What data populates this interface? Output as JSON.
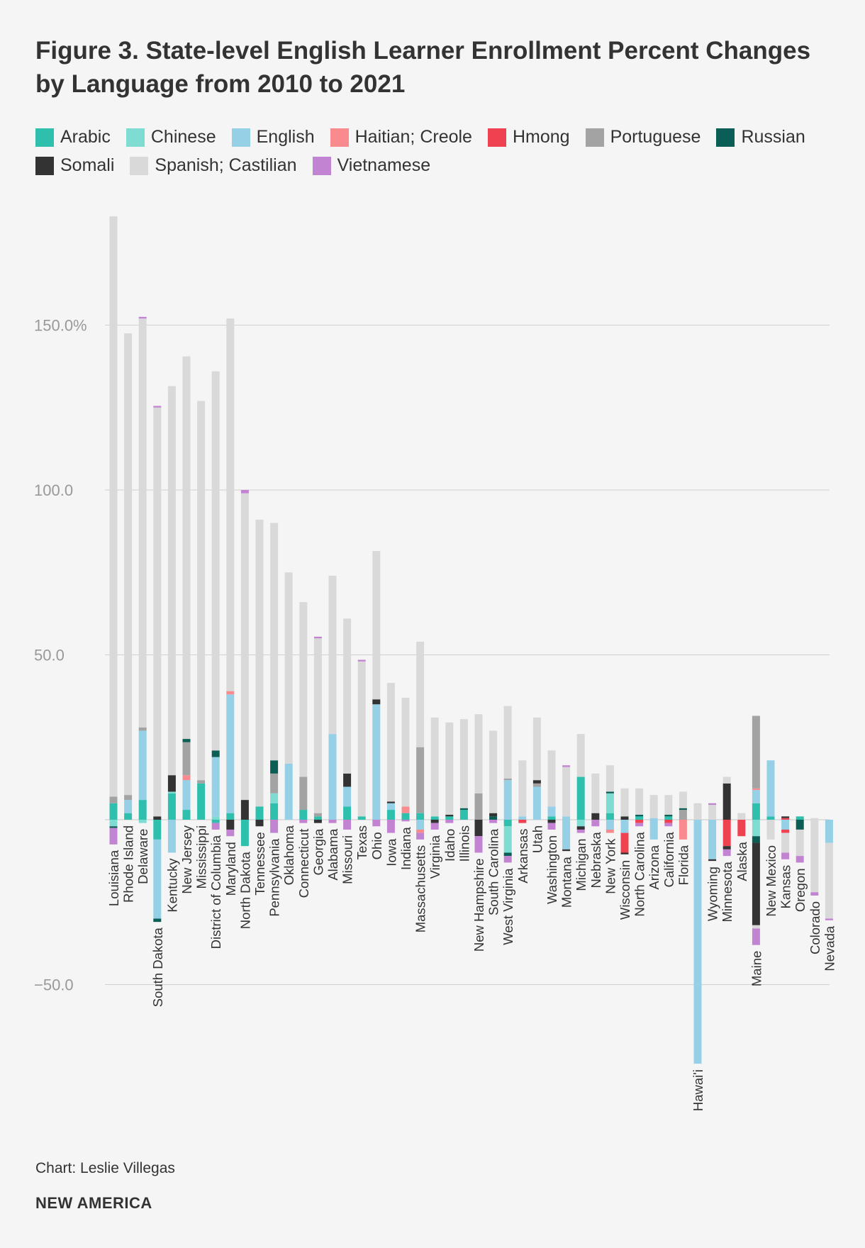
{
  "title": "Figure 3. State-level English Learner Enrollment Percent Changes by Language from 2010 to 2021",
  "credit": "Chart: Leslie Villegas",
  "brand": "NEW AMERICA",
  "chart_data": {
    "type": "bar",
    "stacked": true,
    "title": "Figure 3. State-level English Learner Enrollment Percent Changes by Language from 2010 to 2021",
    "xlabel": "",
    "ylabel": "",
    "ylim": [
      -75,
      185
    ],
    "yticks": [
      {
        "value": 150,
        "label": "150.0%"
      },
      {
        "value": 100,
        "label": "100.0"
      },
      {
        "value": 50,
        "label": "50.0"
      },
      {
        "value": -50,
        "label": "−50.0"
      }
    ],
    "legend_position": "top",
    "languages": [
      "Arabic",
      "Chinese",
      "English",
      "Haitian; Creole",
      "Hmong",
      "Portuguese",
      "Russian",
      "Somali",
      "Spanish; Castilian",
      "Vietnamese"
    ],
    "colors": {
      "Arabic": "#2ebfad",
      "Chinese": "#7fdcd2",
      "English": "#95d0e6",
      "Haitian; Creole": "#f98b8f",
      "Hmong": "#ef4250",
      "Portuguese": "#a3a3a3",
      "Russian": "#0b5e55",
      "Somali": "#333333",
      "Spanish; Castilian": "#d9d9d9",
      "Vietnamese": "#c283d2"
    },
    "states": [
      {
        "name": "Louisiana",
        "pos": {
          "Arabic": 5,
          "Portuguese": 2,
          "Spanish; Castilian": 176
        },
        "neg": {
          "Chinese": -2,
          "Russian": -0.5,
          "Vietnamese": -5
        }
      },
      {
        "name": "Rhode Island",
        "pos": {
          "Arabic": 2,
          "English": 4,
          "Portuguese": 1.5,
          "Spanish; Castilian": 140
        },
        "neg": {}
      },
      {
        "name": "Delaware",
        "pos": {
          "Arabic": 6,
          "English": 21,
          "Portuguese": 1,
          "Spanish; Castilian": 124,
          "Vietnamese": 0.5
        },
        "neg": {
          "Chinese": -1
        }
      },
      {
        "name": "South Dakota",
        "pos": {
          "Somali": 1,
          "Spanish; Castilian": 124,
          "Vietnamese": 0.5
        },
        "neg": {
          "Arabic": -6,
          "English": -24,
          "Russian": -1
        }
      },
      {
        "name": "Kentucky",
        "pos": {
          "Arabic": 8,
          "Chinese": 0.5,
          "Somali": 5,
          "Spanish; Castilian": 118
        },
        "neg": {
          "English": -10
        }
      },
      {
        "name": "New Jersey",
        "pos": {
          "Arabic": 3,
          "English": 9,
          "Haitian; Creole": 1.5,
          "Portuguese": 10,
          "Russian": 1,
          "Spanish; Castilian": 116
        },
        "neg": {}
      },
      {
        "name": "Mississippi",
        "pos": {
          "Arabic": 11,
          "Portuguese": 1,
          "Spanish; Castilian": 115
        },
        "neg": {}
      },
      {
        "name": "District of Columbia",
        "pos": {
          "Chinese": 1,
          "English": 18,
          "Russian": 2,
          "Spanish; Castilian": 115
        },
        "neg": {
          "Arabic": -1,
          "Vietnamese": -2
        }
      },
      {
        "name": "Maryland",
        "pos": {
          "Arabic": 2,
          "English": 36,
          "Haitian; Creole": 1,
          "Spanish; Castilian": 113
        },
        "neg": {
          "Somali": -3,
          "Vietnamese": -2
        }
      },
      {
        "name": "North Dakota",
        "pos": {
          "Somali": 6,
          "Spanish; Castilian": 93,
          "Vietnamese": 1
        },
        "neg": {
          "Arabic": -8
        }
      },
      {
        "name": "Tennessee",
        "pos": {
          "Arabic": 4,
          "Spanish; Castilian": 87
        },
        "neg": {
          "Somali": -2
        }
      },
      {
        "name": "Pennsylvania",
        "pos": {
          "Arabic": 5,
          "Chinese": 3,
          "Portuguese": 6,
          "Russian": 4,
          "Spanish; Castilian": 72
        },
        "neg": {
          "Vietnamese": -4
        }
      },
      {
        "name": "Oklahoma",
        "pos": {
          "English": 17,
          "Spanish; Castilian": 58
        },
        "neg": {}
      },
      {
        "name": "Connecticut",
        "pos": {
          "Arabic": 3,
          "Portuguese": 10,
          "Spanish; Castilian": 53
        },
        "neg": {
          "Vietnamese": -1
        }
      },
      {
        "name": "Georgia",
        "pos": {
          "Arabic": 1,
          "Portuguese": 1,
          "Spanish; Castilian": 53,
          "Vietnamese": 0.5
        },
        "neg": {
          "Somali": -1
        }
      },
      {
        "name": "Alabama",
        "pos": {
          "English": 26,
          "Spanish; Castilian": 48
        },
        "neg": {
          "Vietnamese": -1
        }
      },
      {
        "name": "Missouri",
        "pos": {
          "Arabic": 4,
          "English": 6,
          "Somali": 4,
          "Spanish; Castilian": 47
        },
        "neg": {
          "Vietnamese": -3
        }
      },
      {
        "name": "Texas",
        "pos": {
          "Arabic": 1,
          "Spanish; Castilian": 47,
          "Vietnamese": 0.5
        },
        "neg": {}
      },
      {
        "name": "Ohio",
        "pos": {
          "English": 35,
          "Somali": 1.5,
          "Spanish; Castilian": 45
        },
        "neg": {
          "Vietnamese": -2
        }
      },
      {
        "name": "Iowa",
        "pos": {
          "Arabic": 3,
          "English": 2,
          "Somali": 0.5,
          "Spanish; Castilian": 36
        },
        "neg": {
          "Vietnamese": -4
        }
      },
      {
        "name": "Indiana",
        "pos": {
          "Arabic": 2,
          "Haitian; Creole": 2,
          "Spanish; Castilian": 33
        },
        "neg": {
          "Vietnamese": -0.5
        }
      },
      {
        "name": "Massachusetts",
        "pos": {
          "Arabic": 2,
          "Portuguese": 20,
          "Spanish; Castilian": 32
        },
        "neg": {
          "English": -3,
          "Haitian; Creole": -1,
          "Vietnamese": -2
        }
      },
      {
        "name": "Virginia",
        "pos": {
          "Arabic": 1,
          "Spanish; Castilian": 30
        },
        "neg": {
          "Somali": -1,
          "Vietnamese": -2
        }
      },
      {
        "name": "Idaho",
        "pos": {
          "Arabic": 1,
          "Somali": 0.5,
          "Spanish; Castilian": 28
        },
        "neg": {
          "Vietnamese": -1
        }
      },
      {
        "name": "Illinois",
        "pos": {
          "Arabic": 3,
          "Russian": 0.5,
          "Spanish; Castilian": 27
        },
        "neg": {}
      },
      {
        "name": "New Hampshire",
        "pos": {
          "Portuguese": 8,
          "Spanish; Castilian": 24
        },
        "neg": {
          "Somali": -5,
          "Vietnamese": -5
        }
      },
      {
        "name": "South Carolina",
        "pos": {
          "Russian": 1,
          "Somali": 1,
          "Spanish; Castilian": 25
        },
        "neg": {
          "Vietnamese": -1
        }
      },
      {
        "name": "West Virginia",
        "pos": {
          "English": 12,
          "Portuguese": 0.5,
          "Spanish; Castilian": 22
        },
        "neg": {
          "Arabic": -2,
          "Chinese": -8,
          "Russian": -1,
          "Vietnamese": -2
        }
      },
      {
        "name": "Arkansas",
        "pos": {
          "English": 1,
          "Spanish; Castilian": 17
        },
        "neg": {
          "Hmong": -1
        }
      },
      {
        "name": "Utah",
        "pos": {
          "English": 10,
          "Portuguese": 1,
          "Somali": 1,
          "Spanish; Castilian": 19
        },
        "neg": {}
      },
      {
        "name": "Washington",
        "pos": {
          "Arabic": 1,
          "English": 3,
          "Spanish; Castilian": 17
        },
        "neg": {
          "Somali": -1,
          "Vietnamese": -2
        }
      },
      {
        "name": "Montana",
        "pos": {
          "English": 1,
          "Spanish; Castilian": 15,
          "Vietnamese": 0.5
        },
        "neg": {
          "English": -9,
          "Somali": -0.5
        }
      },
      {
        "name": "Michigan",
        "pos": {
          "Arabic": 13,
          "Spanish; Castilian": 13
        },
        "neg": {
          "Chinese": -2,
          "Somali": -1,
          "Vietnamese": -1
        }
      },
      {
        "name": "Nebraska",
        "pos": {
          "Somali": 2,
          "Spanish; Castilian": 12
        },
        "neg": {
          "Vietnamese": -2
        }
      },
      {
        "name": "New York",
        "pos": {
          "Arabic": 2,
          "Chinese": 6,
          "Russian": 0.5,
          "Spanish; Castilian": 8
        },
        "neg": {
          "English": -3,
          "Haitian; Creole": -1
        }
      },
      {
        "name": "Wisconsin",
        "pos": {
          "Somali": 1,
          "Spanish; Castilian": 8.5
        },
        "neg": {
          "English": -4,
          "Hmong": -6,
          "Somali": -0.5
        }
      },
      {
        "name": "North Carolina",
        "pos": {
          "Arabic": 1,
          "Russian": 0.5,
          "Spanish; Castilian": 8
        },
        "neg": {
          "Hmong": -1,
          "Vietnamese": -1
        }
      },
      {
        "name": "Arizona",
        "pos": {
          "English": 0.5,
          "Spanish; Castilian": 7
        },
        "neg": {
          "English": -6
        }
      },
      {
        "name": "California",
        "pos": {
          "Arabic": 1,
          "Russian": 0.5,
          "Spanish; Castilian": 6
        },
        "neg": {
          "Hmong": -1,
          "Vietnamese": -1
        }
      },
      {
        "name": "Florida",
        "pos": {
          "Portuguese": 3,
          "Russian": 0.5,
          "Spanish; Castilian": 5
        },
        "neg": {
          "Haitian; Creole": -6
        }
      },
      {
        "name": "Hawai'i",
        "pos": {
          "Spanish; Castilian": 5
        },
        "neg": {
          "English": -74
        }
      },
      {
        "name": "Wyoming",
        "pos": {
          "Spanish; Castilian": 4.5,
          "Vietnamese": 0.5
        },
        "neg": {
          "English": -12,
          "Somali": -0.5
        }
      },
      {
        "name": "Minnesota",
        "pos": {
          "Somali": 11,
          "Spanish; Castilian": 2
        },
        "neg": {
          "Hmong": -8,
          "Somali": -1,
          "Vietnamese": -2
        }
      },
      {
        "name": "Alaska",
        "pos": {
          "Spanish; Castilian": 2
        },
        "neg": {
          "Hmong": -5
        }
      },
      {
        "name": "Maine",
        "pos": {
          "Arabic": 5,
          "English": 4,
          "Haitian; Creole": 0.5,
          "Portuguese": 22
        },
        "neg": {
          "Chinese": -5,
          "Russian": -2,
          "Somali": -25,
          "Spanish; Castilian": -1,
          "Vietnamese": -5
        }
      },
      {
        "name": "New Mexico",
        "pos": {
          "Arabic": 1,
          "English": 17
        },
        "neg": {
          "Spanish; Castilian": -6
        }
      },
      {
        "name": "Kansas",
        "pos": {
          "Somali": 0.5,
          "Hmong": 0.5
        },
        "neg": {
          "English": -3,
          "Hmong": -1,
          "Spanish; Castilian": -6,
          "Vietnamese": -2
        }
      },
      {
        "name": "Oregon",
        "pos": {
          "Arabic": 1
        },
        "neg": {
          "Russian": -3,
          "Spanish; Castilian": -8,
          "Vietnamese": -2
        }
      },
      {
        "name": "Colorado",
        "pos": {
          "Spanish; Castilian": 0.5
        },
        "neg": {
          "Spanish; Castilian": -22,
          "Vietnamese": -1
        }
      },
      {
        "name": "Nevada",
        "pos": {},
        "neg": {
          "English": -7,
          "Spanish; Castilian": -23,
          "Vietnamese": -0.5
        }
      }
    ]
  }
}
